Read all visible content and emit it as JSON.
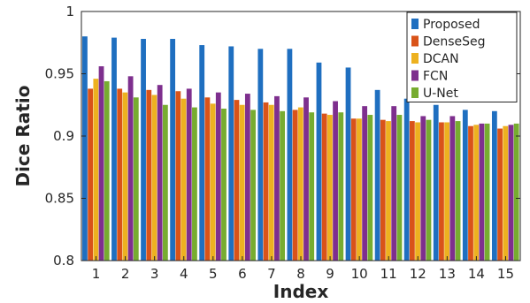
{
  "chart_data": {
    "type": "bar",
    "title": "",
    "xlabel": "Index",
    "ylabel": "Dice Ratio",
    "ylim": [
      0.8,
      1.0
    ],
    "yticks": [
      "0.8",
      "0.85",
      "0.9",
      "0.95",
      "1"
    ],
    "grid": false,
    "legend_position": "top-right",
    "categories": [
      "1",
      "2",
      "3",
      "4",
      "5",
      "6",
      "7",
      "8",
      "9",
      "10",
      "11",
      "12",
      "13",
      "14",
      "15"
    ],
    "series": [
      {
        "name": "Proposed",
        "color": "#1f6fc0",
        "values": [
          0.98,
          0.979,
          0.978,
          0.978,
          0.973,
          0.972,
          0.97,
          0.97,
          0.959,
          0.955,
          0.937,
          0.93,
          0.925,
          0.921,
          0.92
        ]
      },
      {
        "name": "DenseSeg",
        "color": "#d95319",
        "values": [
          0.938,
          0.938,
          0.937,
          0.936,
          0.931,
          0.929,
          0.927,
          0.921,
          0.918,
          0.914,
          0.913,
          0.912,
          0.911,
          0.908,
          0.906
        ]
      },
      {
        "name": "DCAN",
        "color": "#edb120",
        "values": [
          0.946,
          0.935,
          0.933,
          0.93,
          0.926,
          0.925,
          0.925,
          0.923,
          0.917,
          0.914,
          0.912,
          0.911,
          0.911,
          0.909,
          0.908
        ]
      },
      {
        "name": "FCN",
        "color": "#7e2f8e",
        "values": [
          0.956,
          0.948,
          0.941,
          0.938,
          0.935,
          0.934,
          0.932,
          0.931,
          0.928,
          0.924,
          0.924,
          0.916,
          0.916,
          0.91,
          0.909
        ]
      },
      {
        "name": "U-Net",
        "color": "#77ac30",
        "values": [
          0.944,
          0.931,
          0.925,
          0.923,
          0.922,
          0.921,
          0.92,
          0.919,
          0.919,
          0.917,
          0.917,
          0.913,
          0.912,
          0.91,
          0.91
        ]
      }
    ]
  }
}
